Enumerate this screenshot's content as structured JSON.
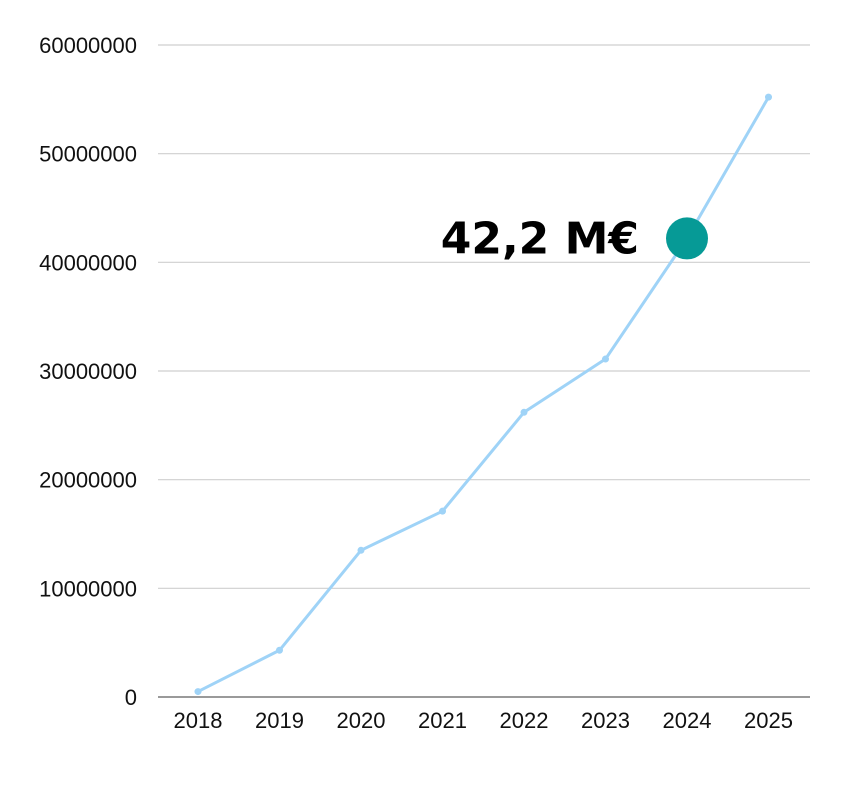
{
  "chart_data": {
    "type": "line",
    "x": [
      "2018",
      "2019",
      "2020",
      "2021",
      "2022",
      "2023",
      "2024",
      "2025"
    ],
    "series": [
      {
        "values": [
          500000,
          4300000,
          13500000,
          17100000,
          26200000,
          31100000,
          42200000,
          55200000
        ],
        "color": "#9fd3f7"
      }
    ],
    "ylim": [
      0,
      60000000
    ],
    "yticks": [
      0,
      10000000,
      20000000,
      30000000,
      40000000,
      50000000,
      60000000
    ],
    "ytick_labels": [
      "0",
      "10000000",
      "20000000",
      "30000000",
      "40000000",
      "50000000",
      "60000000"
    ],
    "grid": true,
    "highlight": {
      "x": "2024",
      "y": 42200000,
      "label": "42,2 M€",
      "color": "#069a96"
    },
    "title": "",
    "xlabel": "",
    "ylabel": ""
  }
}
